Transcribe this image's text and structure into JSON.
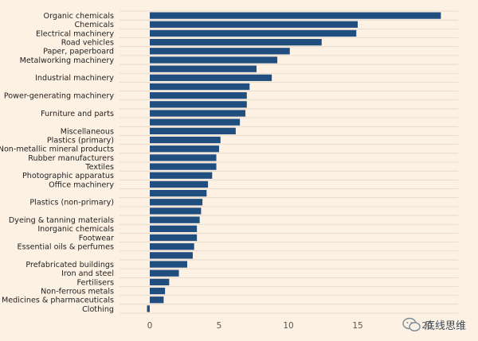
{
  "chart_data": {
    "type": "bar",
    "orientation": "horizontal",
    "title": "",
    "xlabel": "",
    "ylabel": "",
    "xlim": [
      -1,
      22
    ],
    "xticks": [
      0,
      5,
      10,
      15,
      20
    ],
    "xtick_labels": [
      "0",
      "5",
      "10",
      "15",
      "20"
    ],
    "grid": true,
    "bar_color": "#1f4e7f",
    "categories": [
      "Organic chemicals",
      "Chemicals",
      "Electrical machinery",
      "Road vehicles",
      "Paper, paperboard",
      "Metalworking machinery",
      "",
      "Industrial machinery",
      "",
      "Power-generating machinery",
      "",
      "Furniture and parts",
      "",
      "Miscellaneous",
      "Plastics (primary)",
      "Non-metallic mineral products",
      "Rubber manufacturers",
      "Textiles",
      "Photographic apparatus",
      "Office machinery",
      "",
      "Plastics (non-primary)",
      "",
      "Dyeing & tanning materials",
      "Inorganic chemicals",
      "Footwear",
      "Essential oils & perfumes",
      "",
      "Prefabricated buildings",
      "Iron and steel",
      "Fertilisers",
      "Non-ferrous metals",
      "Medicines & pharmaceuticals",
      "Clothing"
    ],
    "values": [
      21.0,
      15.0,
      14.9,
      12.4,
      10.1,
      9.2,
      7.7,
      8.8,
      7.2,
      7.0,
      7.0,
      6.9,
      6.5,
      6.2,
      5.1,
      5.0,
      4.8,
      4.8,
      4.5,
      4.2,
      4.1,
      3.8,
      3.7,
      3.6,
      3.4,
      3.4,
      3.2,
      3.1,
      2.7,
      2.1,
      1.4,
      1.1,
      1.0,
      -0.2
    ]
  },
  "watermark": {
    "text": "底线思维"
  },
  "colors": {
    "background": "#fdf1e4",
    "bar": "#1f4e7f",
    "grid": "#e3d6c8"
  }
}
